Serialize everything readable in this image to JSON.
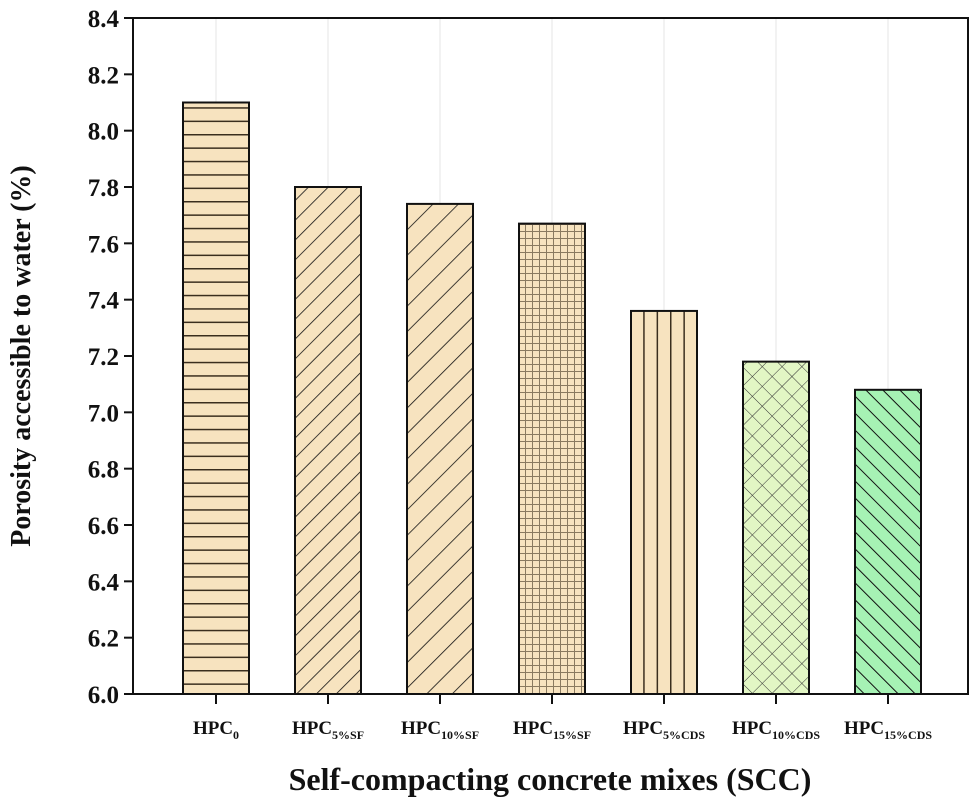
{
  "chart_data": {
    "type": "bar",
    "xlabel": "Self-compacting concrete mixes (SCC)",
    "ylabel": "Porosity accessible to water (%)",
    "ylim": [
      6.0,
      8.4
    ],
    "yticks": [
      "6.0",
      "6.2",
      "6.4",
      "6.6",
      "6.8",
      "7.0",
      "7.2",
      "7.4",
      "7.6",
      "7.8",
      "8.0",
      "8.2",
      "8.4"
    ],
    "categories": [
      {
        "base": "HPC",
        "sub": "0"
      },
      {
        "base": "HPC",
        "sub": "5%SF"
      },
      {
        "base": "HPC",
        "sub": "10%SF"
      },
      {
        "base": "HPC",
        "sub": "15%SF"
      },
      {
        "base": "HPC",
        "sub": "5%CDS"
      },
      {
        "base": "HPC",
        "sub": "10%CDS"
      },
      {
        "base": "HPC",
        "sub": "15%CDS"
      }
    ],
    "values": [
      8.1,
      7.8,
      7.74,
      7.67,
      7.36,
      7.18,
      7.08
    ],
    "patterns": [
      "horizontal-lines",
      "diagonal-lines",
      "diagonal-lines-wide",
      "grid",
      "vertical-lines",
      "crosshatch",
      "back-diagonal-lines"
    ],
    "colors": [
      "#F7E3BF",
      "#F7E3BF",
      "#F7E3BF",
      "#F7E3BF",
      "#F7E3BF",
      "#E2F6C4",
      "#A6F2B4"
    ],
    "grid": "vertical lines at categories",
    "legend": "none"
  }
}
